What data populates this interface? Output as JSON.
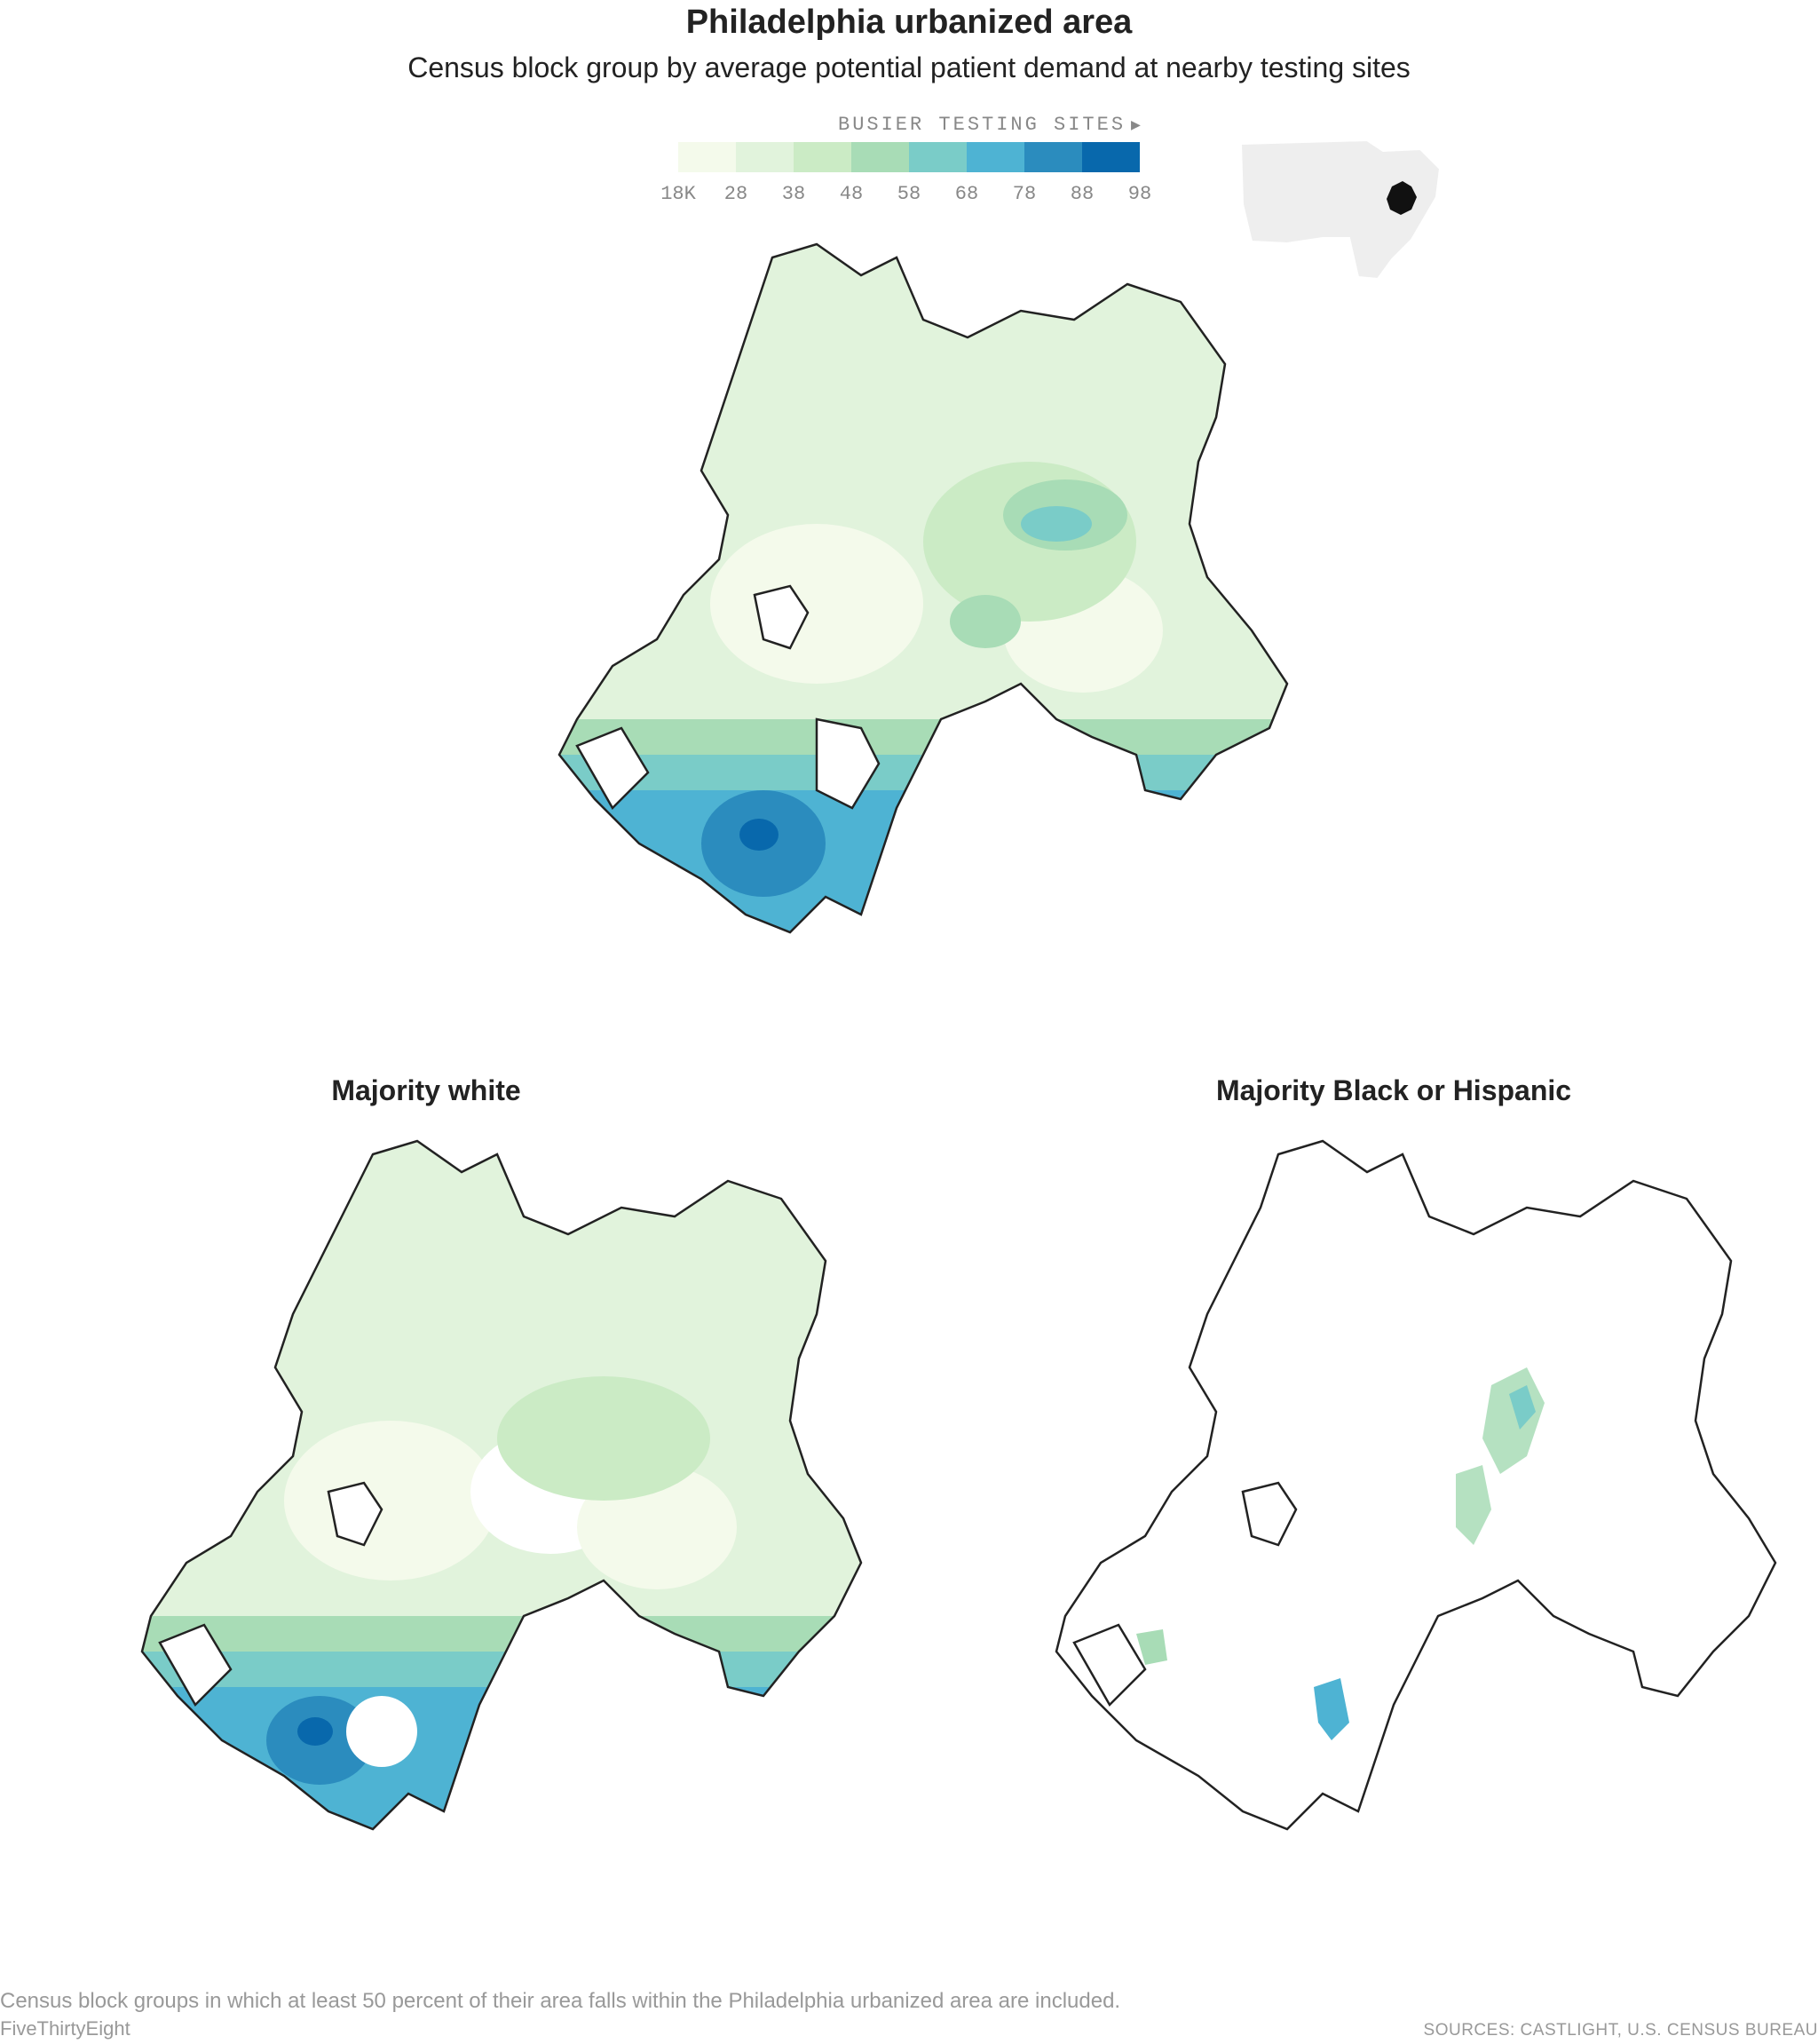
{
  "header": {
    "title": "Philadelphia urbanized area",
    "subtitle": "Census block group by average potential patient demand at nearby testing sites"
  },
  "legend": {
    "caption": "BUSIER TESTING SITES",
    "arrow": "▶",
    "ticks": [
      "18K",
      "28",
      "38",
      "48",
      "58",
      "68",
      "78",
      "88",
      "98"
    ],
    "colors": [
      "#f4faeb",
      "#e1f3dc",
      "#cbebc5",
      "#a8dcb6",
      "#7accc8",
      "#4eb3d3",
      "#2b8cbe",
      "#0868ac"
    ]
  },
  "panels": {
    "all": {
      "title": ""
    },
    "white": {
      "title": "Majority white"
    },
    "black_hispanic": {
      "title": "Majority Black or Hispanic"
    }
  },
  "footer": {
    "note": "Census block groups in which at least 50 percent of their area falls within the Philadelphia urbanized area are included.",
    "credit": "FiveThirtyEight",
    "sources": "SOURCES: CASTLIGHT, U.S. CENSUS BUREAU"
  }
}
